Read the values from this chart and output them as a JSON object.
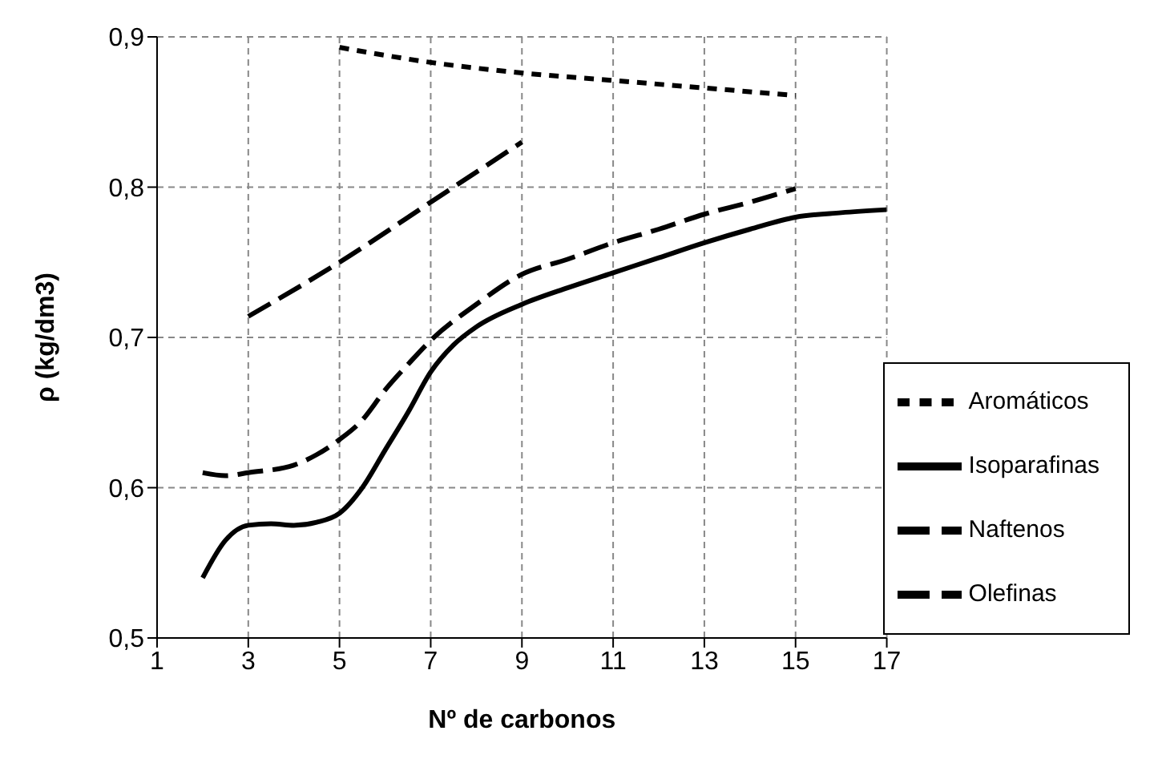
{
  "chart_data": {
    "type": "line",
    "xlabel": "Nº de carbonos",
    "ylabel": "ρ (kg/dm3)",
    "xlim": [
      1,
      17
    ],
    "xticks": [
      1,
      3,
      5,
      7,
      9,
      11,
      13,
      15,
      17
    ],
    "ylim": [
      0.5,
      0.9
    ],
    "yticks": [
      {
        "value": 0.5,
        "label": "0,5"
      },
      {
        "value": 0.6,
        "label": "0,6"
      },
      {
        "value": 0.7,
        "label": "0,7"
      },
      {
        "value": 0.8,
        "label": "0,8"
      },
      {
        "value": 0.9,
        "label": "0,9"
      }
    ],
    "grid": true,
    "legend": "bottom right",
    "marker": "none",
    "series": [
      {
        "name": "Isoparafinas",
        "color": "#000000",
        "line_style": "solid",
        "x": [
          2,
          2.5,
          3,
          3.5,
          4,
          4.5,
          5,
          5.5,
          6,
          6.5,
          7,
          7.5,
          8,
          9,
          10,
          11,
          12,
          13,
          14,
          15,
          16,
          17
        ],
        "values": [
          0.54,
          0.565,
          0.575,
          0.576,
          0.575,
          0.577,
          0.583,
          0.6,
          0.625,
          0.65,
          0.677,
          0.695,
          0.707,
          0.722,
          0.733,
          0.743,
          0.753,
          0.763,
          0.772,
          0.78,
          0.783,
          0.785
        ]
      },
      {
        "name": "Olefinas",
        "color": "#000000",
        "line_style": "dashed",
        "x": [
          2,
          2.5,
          3,
          4,
          4.5,
          5,
          5.5,
          6,
          6.5,
          7,
          8,
          9,
          10,
          11,
          12,
          13,
          14,
          15
        ],
        "values": [
          0.61,
          0.608,
          0.61,
          0.615,
          0.622,
          0.632,
          0.645,
          0.665,
          0.682,
          0.698,
          0.722,
          0.742,
          0.752,
          0.763,
          0.772,
          0.782,
          0.79,
          0.799
        ]
      },
      {
        "name": "Aromáticos",
        "color": "#000000",
        "line_style": "dotted",
        "x": [
          5,
          7,
          9,
          11,
          13,
          15
        ],
        "values": [
          0.893,
          0.883,
          0.876,
          0.871,
          0.866,
          0.861
        ]
      },
      {
        "name": "Naftenos",
        "color": "#000000",
        "line_style": "dashed",
        "x": [
          3,
          5,
          7,
          9
        ],
        "values": [
          0.714,
          0.75,
          0.79,
          0.83
        ]
      }
    ]
  }
}
